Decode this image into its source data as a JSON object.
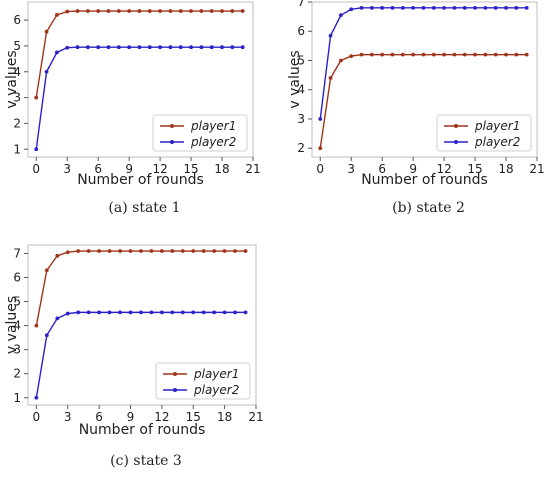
{
  "chart_data": [
    {
      "type": "line",
      "caption": "(a)  state 1",
      "xlabel": "Number of rounds",
      "ylabel": "v values",
      "x": [
        0,
        1,
        2,
        3,
        4,
        5,
        6,
        7,
        8,
        9,
        10,
        11,
        12,
        13,
        14,
        15,
        16,
        17,
        18,
        19,
        20
      ],
      "xticks": [
        0,
        3,
        6,
        9,
        12,
        15,
        18,
        21
      ],
      "yticks": [
        1,
        2,
        3,
        4,
        5,
        6
      ],
      "xlim": [
        -0.8,
        21
      ],
      "ylim": [
        0.7,
        6.7
      ],
      "legend_position": "lower-right",
      "series": [
        {
          "name": "player1",
          "color": "#a0341a",
          "values": [
            3.0,
            5.55,
            6.2,
            6.33,
            6.35,
            6.35,
            6.35,
            6.35,
            6.35,
            6.35,
            6.35,
            6.35,
            6.35,
            6.35,
            6.35,
            6.35,
            6.35,
            6.35,
            6.35,
            6.35,
            6.35
          ]
        },
        {
          "name": "player2",
          "color": "#2b22c8",
          "values": [
            1.0,
            4.0,
            4.75,
            4.93,
            4.95,
            4.95,
            4.95,
            4.95,
            4.95,
            4.95,
            4.95,
            4.95,
            4.95,
            4.95,
            4.95,
            4.95,
            4.95,
            4.95,
            4.95,
            4.95,
            4.95
          ]
        }
      ]
    },
    {
      "type": "line",
      "caption": "(b)  state 2",
      "xlabel": "Number of rounds",
      "ylabel": "v values",
      "x": [
        0,
        1,
        2,
        3,
        4,
        5,
        6,
        7,
        8,
        9,
        10,
        11,
        12,
        13,
        14,
        15,
        16,
        17,
        18,
        19,
        20
      ],
      "xticks": [
        0,
        3,
        6,
        9,
        12,
        15,
        18,
        21
      ],
      "yticks": [
        2,
        3,
        4,
        5,
        6,
        7
      ],
      "xlim": [
        -0.8,
        21
      ],
      "ylim": [
        1.7,
        7.0
      ],
      "legend_position": "lower-right",
      "series": [
        {
          "name": "player1",
          "color": "#a0341a",
          "values": [
            2.0,
            4.4,
            5.0,
            5.15,
            5.2,
            5.2,
            5.2,
            5.2,
            5.2,
            5.2,
            5.2,
            5.2,
            5.2,
            5.2,
            5.2,
            5.2,
            5.2,
            5.2,
            5.2,
            5.2,
            5.2
          ]
        },
        {
          "name": "player2",
          "color": "#2b22c8",
          "values": [
            3.0,
            5.85,
            6.55,
            6.75,
            6.8,
            6.8,
            6.8,
            6.8,
            6.8,
            6.8,
            6.8,
            6.8,
            6.8,
            6.8,
            6.8,
            6.8,
            6.8,
            6.8,
            6.8,
            6.8,
            6.8
          ]
        }
      ]
    },
    {
      "type": "line",
      "caption": "(c)  state 3",
      "xlabel": "Number of rounds",
      "ylabel": "v values",
      "x": [
        0,
        1,
        2,
        3,
        4,
        5,
        6,
        7,
        8,
        9,
        10,
        11,
        12,
        13,
        14,
        15,
        16,
        17,
        18,
        19,
        20
      ],
      "xticks": [
        0,
        3,
        6,
        9,
        12,
        15,
        18,
        21
      ],
      "yticks": [
        1,
        2,
        3,
        4,
        5,
        6,
        7
      ],
      "xlim": [
        -0.8,
        21
      ],
      "ylim": [
        0.7,
        7.35
      ],
      "legend_position": "lower-right",
      "series": [
        {
          "name": "player1",
          "color": "#a0341a",
          "values": [
            4.0,
            6.3,
            6.9,
            7.05,
            7.1,
            7.1,
            7.1,
            7.1,
            7.1,
            7.1,
            7.1,
            7.1,
            7.1,
            7.1,
            7.1,
            7.1,
            7.1,
            7.1,
            7.1,
            7.1,
            7.1
          ]
        },
        {
          "name": "player2",
          "color": "#2b22c8",
          "values": [
            1.0,
            3.6,
            4.3,
            4.5,
            4.55,
            4.55,
            4.55,
            4.55,
            4.55,
            4.55,
            4.55,
            4.55,
            4.55,
            4.55,
            4.55,
            4.55,
            4.55,
            4.55,
            4.55,
            4.55,
            4.55
          ]
        }
      ]
    }
  ]
}
